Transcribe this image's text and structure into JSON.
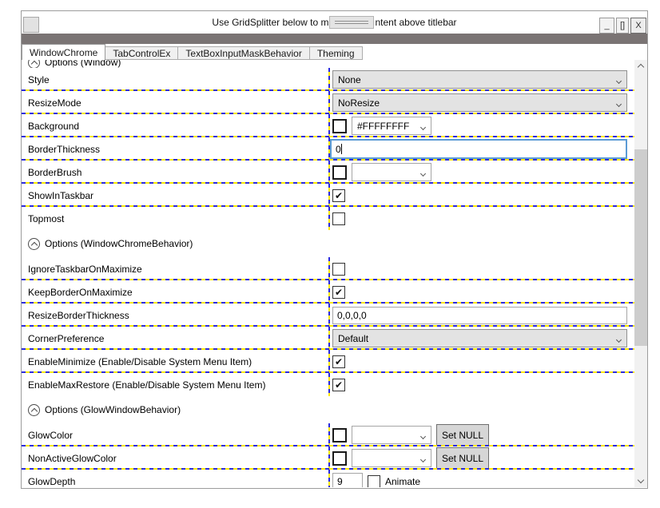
{
  "titlebar": {
    "title_before": "Use GridSplitter below to m",
    "title_after": "ntent above titlebar",
    "minimize_label": "_",
    "maximize_label": "[]",
    "close_label": "X"
  },
  "tabs": [
    {
      "label": "WindowChrome"
    },
    {
      "label": "TabControlEx"
    },
    {
      "label": "TextBoxInputMaskBehavior"
    },
    {
      "label": "Theming"
    }
  ],
  "grid": {
    "clipped_section_label": "Options (Window)",
    "section1_label": "Options (WindowChromeBehavior)",
    "section2_label": "Options (GlowWindowBehavior)",
    "rows": [
      {
        "label": "Style",
        "value": "None"
      },
      {
        "label": "ResizeMode",
        "value": "NoResize"
      },
      {
        "label": "Background",
        "check": "",
        "value": "#FFFFFFFF"
      },
      {
        "label": "BorderThickness",
        "value": "0"
      },
      {
        "label": "BorderBrush",
        "check": "",
        "value": ""
      },
      {
        "label": "ShowInTaskbar",
        "check": "✔"
      },
      {
        "label": "Topmost",
        "check": ""
      },
      {
        "label": "IgnoreTaskbarOnMaximize",
        "check": ""
      },
      {
        "label": "KeepBorderOnMaximize",
        "check": "✔"
      },
      {
        "label": "ResizeBorderThickness",
        "value": "0,0,0,0"
      },
      {
        "label": "CornerPreference",
        "value": "Default"
      },
      {
        "label": "EnableMinimize (Enable/Disable System Menu Item)",
        "check": "✔"
      },
      {
        "label": "EnableMaxRestore (Enable/Disable System Menu Item)",
        "check": "✔"
      },
      {
        "label": "GlowColor",
        "check": "",
        "value": "",
        "button": "Set NULL"
      },
      {
        "label": "NonActiveGlowColor",
        "check": "",
        "value": "",
        "button": "Set NULL"
      },
      {
        "label": "GlowDepth",
        "value": "9",
        "check": "",
        "checkbox_label": "Animate"
      }
    ]
  },
  "colors": {
    "separator_blue": "#2b2be0",
    "separator_yellow": "#ffe800",
    "focus_border": "#5b9bd5",
    "splitter_bar": "#7a7474"
  }
}
